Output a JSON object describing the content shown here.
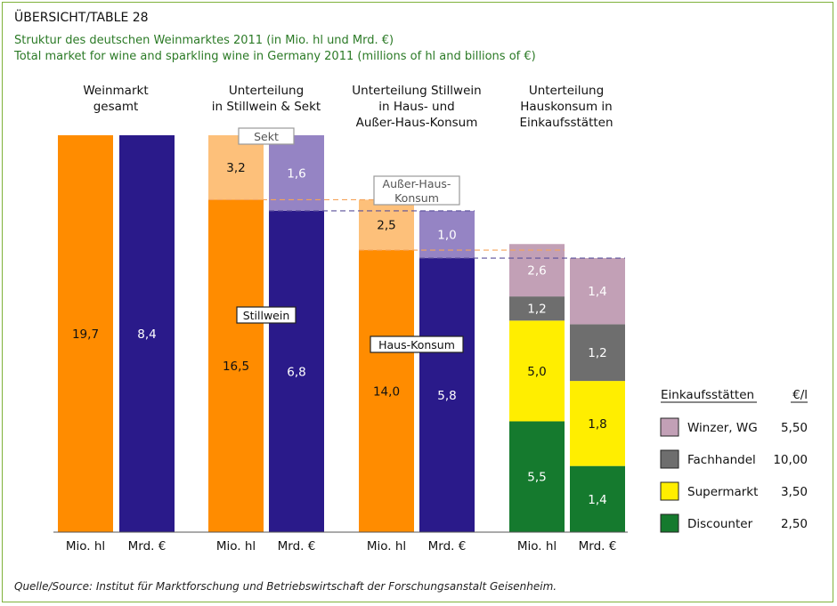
{
  "header": {
    "table_number": "ÜBERSICHT/TABLE 28",
    "title_de": "Struktur des deutschen Weinmarktes 2011 (in Mio. hl und Mrd. €)",
    "title_en": "Total market for wine and sparkling wine in Germany 2011 (millions of hl and billions of €)"
  },
  "source": "Quelle/Source: Institut für Marktforschung und Betriebswirtschaft der Forschungsanstalt Geisenheim.",
  "colors": {
    "orange": "#ff8c00",
    "light_orange": "#fdc07a",
    "navy": "#2a1a8a",
    "lavender": "#9584c4",
    "winzer": "#c2a0b6",
    "fachhandel": "#6e6e6e",
    "supermarkt": "#ffee00",
    "discounter": "#157a2e"
  },
  "chart_data": {
    "type": "bar",
    "stacked": true,
    "groups": [
      {
        "title": [
          "Weinmarkt",
          "gesamt"
        ],
        "bars": [
          {
            "label": "Mio. hl",
            "segments": [
              {
                "value": 19.7,
                "label": "19,7",
                "color": "orange"
              }
            ]
          },
          {
            "label": "Mrd. €",
            "segments": [
              {
                "value": 8.4,
                "label": "8,4",
                "color": "navy"
              }
            ]
          }
        ]
      },
      {
        "title": [
          "Unterteilung",
          "in Stillwein & Sekt"
        ],
        "bars": [
          {
            "label": "Mio. hl",
            "segments": [
              {
                "value": 16.5,
                "label": "16,5",
                "color": "orange"
              },
              {
                "value": 3.2,
                "label": "3,2",
                "color": "light_orange"
              }
            ]
          },
          {
            "label": "Mrd. €",
            "segments": [
              {
                "value": 6.8,
                "label": "6,8",
                "color": "navy"
              },
              {
                "value": 1.6,
                "label": "1,6",
                "color": "lavender"
              }
            ]
          }
        ]
      },
      {
        "title": [
          "Unterteilung Stillwein",
          "in Haus- und",
          "Außer-Haus-Konsum"
        ],
        "bars": [
          {
            "label": "Mio. hl",
            "segments": [
              {
                "value": 14.0,
                "label": "14,0",
                "color": "orange"
              },
              {
                "value": 2.5,
                "label": "2,5",
                "color": "light_orange"
              }
            ]
          },
          {
            "label": "Mrd. €",
            "segments": [
              {
                "value": 5.8,
                "label": "5,8",
                "color": "navy"
              },
              {
                "value": 1.0,
                "label": "1,0",
                "color": "lavender"
              }
            ]
          }
        ]
      },
      {
        "title": [
          "Unterteilung",
          "Hauskonsum in",
          "Einkaufsstätten"
        ],
        "bars": [
          {
            "label": "Mio. hl",
            "segments": [
              {
                "value": 5.5,
                "label": "5,5",
                "color": "discounter"
              },
              {
                "value": 5.0,
                "label": "5,0",
                "color": "supermarkt"
              },
              {
                "value": 1.2,
                "label": "1,2",
                "color": "fachhandel"
              },
              {
                "value": 2.6,
                "label": "2,6",
                "color": "winzer"
              }
            ]
          },
          {
            "label": "Mrd. €",
            "segments": [
              {
                "value": 1.4,
                "label": "1,4",
                "color": "discounter"
              },
              {
                "value": 1.8,
                "label": "1,8",
                "color": "supermarkt"
              },
              {
                "value": 1.2,
                "label": "1,2",
                "color": "fachhandel"
              },
              {
                "value": 1.4,
                "label": "1,4",
                "color": "winzer"
              }
            ]
          }
        ]
      }
    ],
    "annotations": [
      {
        "text": [
          "Sekt"
        ],
        "group": 1
      },
      {
        "text": [
          "Stillwein"
        ],
        "group": 1
      },
      {
        "text": [
          "Außer-Haus-",
          "Konsum"
        ],
        "group": 2
      },
      {
        "text": [
          "Haus-Konsum"
        ],
        "group": 2
      }
    ],
    "legend": {
      "title": "Einkaufsstätten",
      "unit_header": "€/l",
      "items": [
        {
          "label": "Winzer, WG",
          "value": "5,50",
          "color": "winzer"
        },
        {
          "label": "Fachhandel",
          "value": "10,00",
          "color": "fachhandel"
        },
        {
          "label": "Supermarkt",
          "value": "3,50",
          "color": "supermarkt"
        },
        {
          "label": "Discounter",
          "value": "2,50",
          "color": "discounter"
        }
      ]
    }
  }
}
